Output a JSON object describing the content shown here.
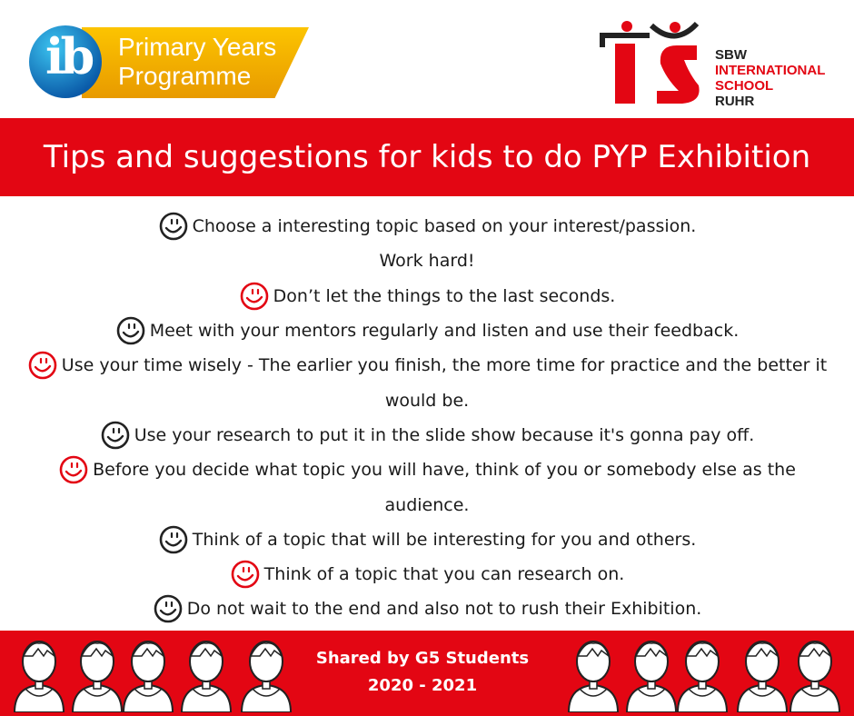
{
  "header": {
    "ib_logo": {
      "letters": "ib",
      "line1": "Primary Years",
      "line2": "Programme"
    },
    "school_logo": {
      "line1": "SBW",
      "line2": "INTERNATIONAL",
      "line3": "SCHOOL",
      "line4": "RUHR"
    }
  },
  "title": "Tips and suggestions for kids to do PYP Exhibition",
  "tips": [
    {
      "icon": "smiley-icon",
      "color": "#222222",
      "text": "Choose a interesting topic based on your interest/passion."
    },
    {
      "icon": "",
      "color": "",
      "text": "Work hard!"
    },
    {
      "icon": "smiley-icon",
      "color": "#e30613",
      "text": "Don’t let the things to the last seconds."
    },
    {
      "icon": "smiley-icon",
      "color": "#222222",
      "text": "Meet with your mentors regularly and listen and use their feedback."
    },
    {
      "icon": "smiley-icon",
      "color": "#e30613",
      "text": "Use your time wisely - The earlier you finish, the more time for practice and the better it"
    },
    {
      "icon": "",
      "color": "",
      "text": "would be."
    },
    {
      "icon": "smiley-icon",
      "color": "#222222",
      "text": "Use your research to put it in the slide show because it's gonna pay off."
    },
    {
      "icon": "smiley-icon",
      "color": "#e30613",
      "text": "Before you decide what topic you will have, think of you or somebody else as the"
    },
    {
      "icon": "",
      "color": "",
      "text": "audience."
    },
    {
      "icon": "smiley-icon",
      "color": "#222222",
      "text": "Think of a topic that will be interesting for you and others."
    },
    {
      "icon": "smiley-icon",
      "color": "#e30613",
      "text": "Think of a topic that you can research on."
    },
    {
      "icon": "smiley-icon",
      "color": "#222222",
      "text": "Do not wait to the end and also not to rush their Exhibition."
    }
  ],
  "footer": {
    "line1": "Shared by G5 Students",
    "line2": "2020 - 2021"
  },
  "colors": {
    "brand_red": "#e30613",
    "ib_yellow": "#fcc400",
    "ib_blue": "#0a5aa8"
  }
}
